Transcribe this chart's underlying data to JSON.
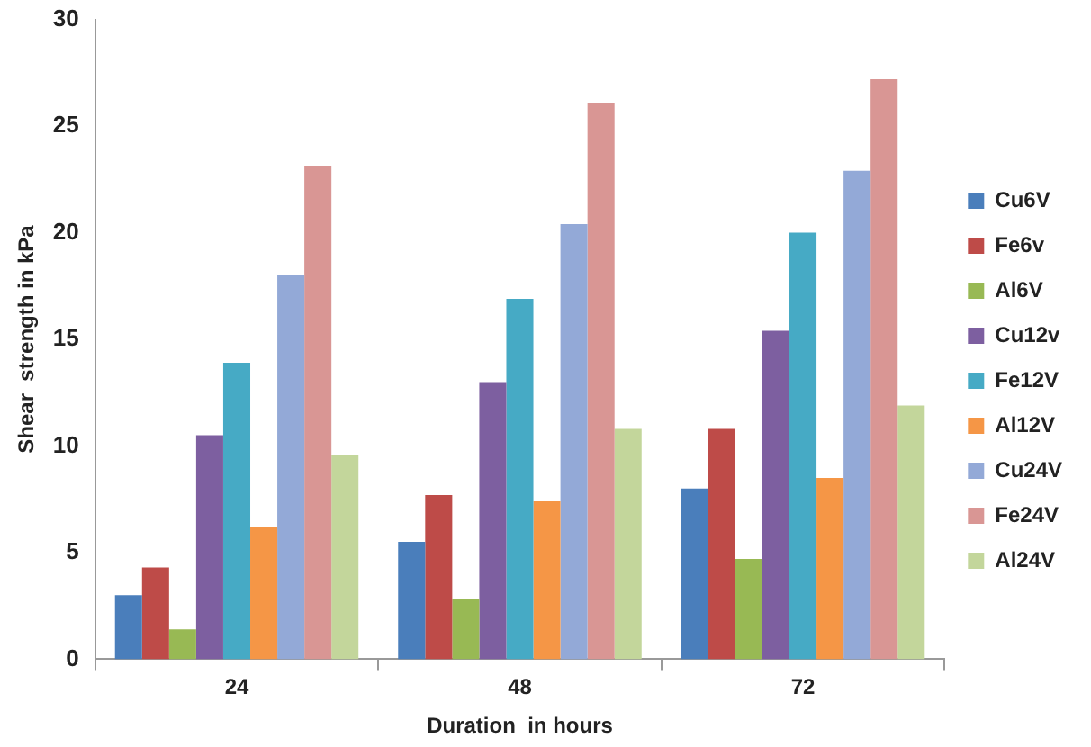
{
  "chart_data": {
    "type": "bar",
    "xlabel": "Duration  in hours",
    "ylabel": "Shear  strength in kPa",
    "categories": [
      "24",
      "48",
      "72"
    ],
    "series": [
      {
        "name": "Cu6V",
        "color": "#4a7ebb",
        "values": [
          3.0,
          5.5,
          8.0
        ]
      },
      {
        "name": "Fe6v",
        "color": "#be4b48",
        "values": [
          4.3,
          7.7,
          10.8
        ]
      },
      {
        "name": "Al6V",
        "color": "#98b954",
        "values": [
          1.4,
          2.8,
          4.7
        ]
      },
      {
        "name": "Cu12v",
        "color": "#7d5fa0",
        "values": [
          10.5,
          13.0,
          15.4
        ]
      },
      {
        "name": "Fe12V",
        "color": "#46aac5",
        "values": [
          13.9,
          16.9,
          20.0
        ]
      },
      {
        "name": "Al12V",
        "color": "#f59646",
        "values": [
          6.2,
          7.4,
          8.5
        ]
      },
      {
        "name": "Cu24V",
        "color": "#93a9d7",
        "values": [
          18.0,
          20.4,
          22.9
        ]
      },
      {
        "name": "Fe24V",
        "color": "#d99694",
        "values": [
          23.1,
          26.1,
          27.2
        ]
      },
      {
        "name": "Al24V",
        "color": "#c3d69b",
        "values": [
          9.6,
          10.8,
          11.9
        ]
      }
    ],
    "ylim": [
      0,
      30
    ],
    "yticks": [
      0,
      5,
      10,
      15,
      20,
      25,
      30
    ],
    "grid": false,
    "legend": "right"
  }
}
